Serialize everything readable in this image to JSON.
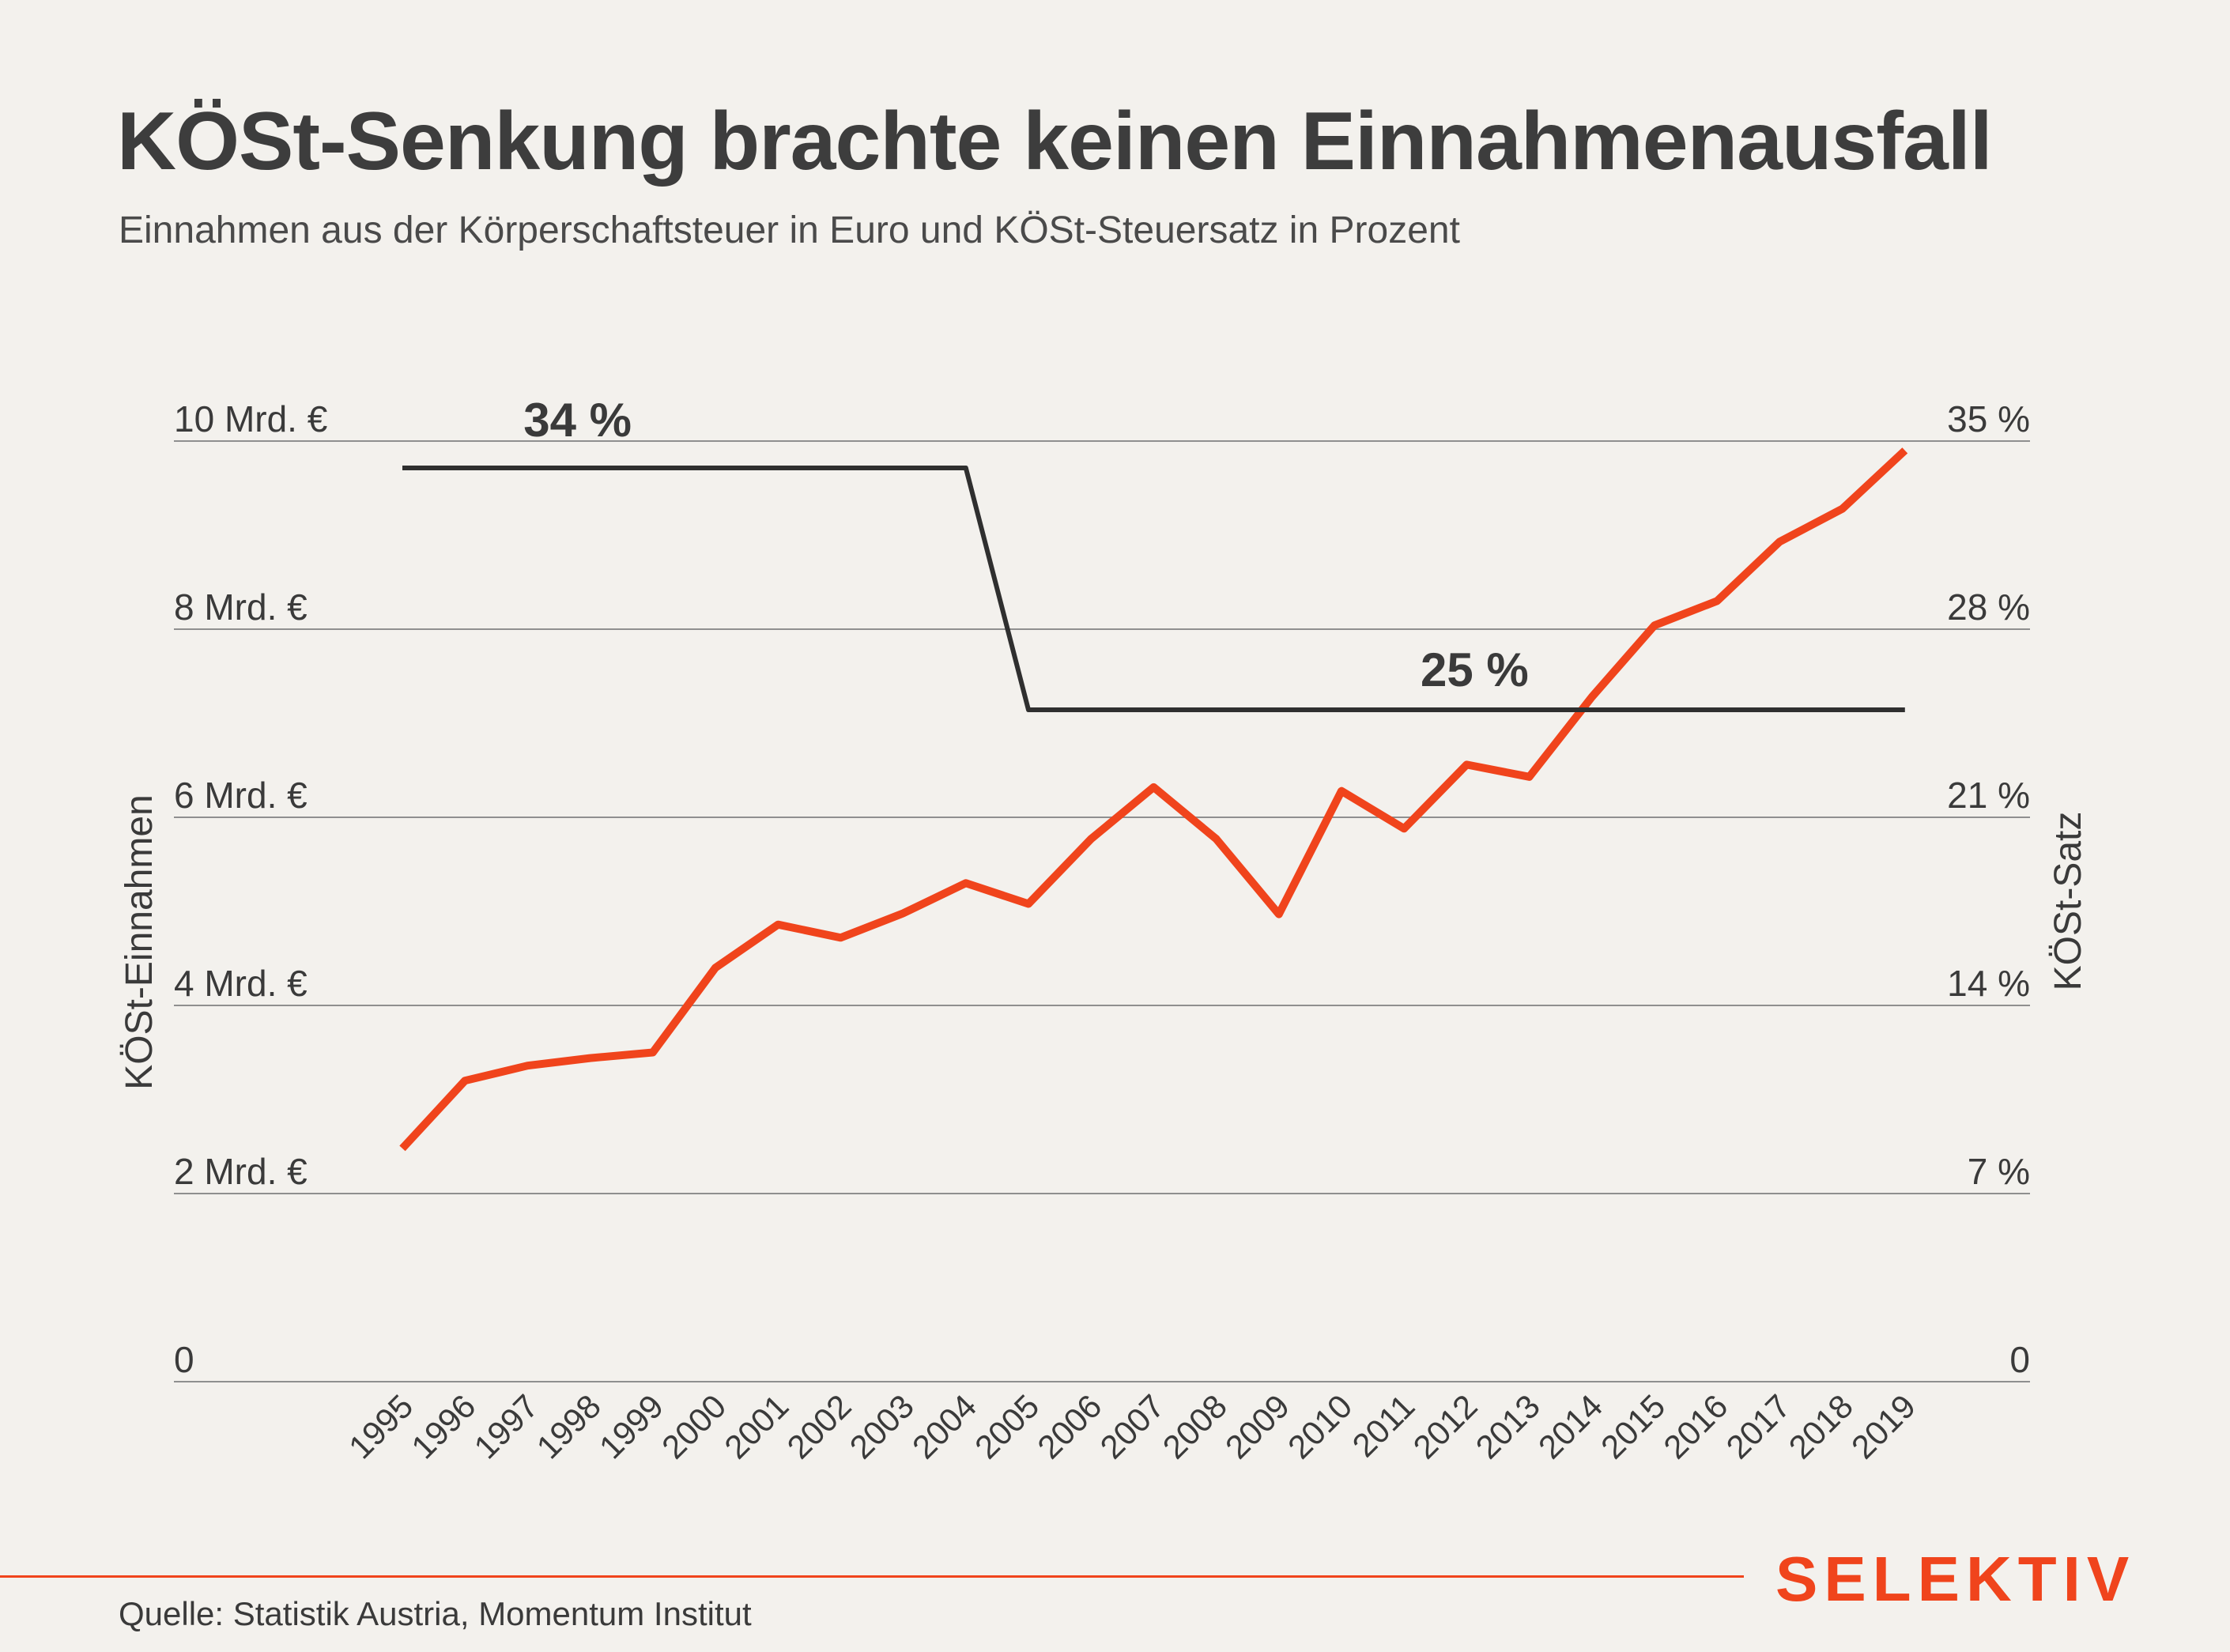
{
  "header": {
    "title": "KÖSt-Senkung brachte keinen Einnahmenausfall",
    "subtitle": "Einnahmen aus der Körperschaftsteuer in Euro und KÖSt-Steuersatz in Prozent"
  },
  "footer": {
    "source": "Quelle: Statistik Austria, Momentum Institut",
    "brand": "SELEKTIV"
  },
  "chart_data": {
    "type": "line",
    "x": [
      "1995",
      "1996",
      "1997",
      "1998",
      "1999",
      "2000",
      "2001",
      "2002",
      "2003",
      "2004",
      "2005",
      "2006",
      "2007",
      "2008",
      "2009",
      "2010",
      "2011",
      "2012",
      "2013",
      "2014",
      "2015",
      "2016",
      "2017",
      "2018",
      "2019"
    ],
    "left_axis": {
      "label": "KÖSt-Einnahmen",
      "ticks": [
        "0",
        "2 Mrd. €",
        "4 Mrd. €",
        "6 Mrd. €",
        "8 Mrd. €",
        "10 Mrd. €"
      ],
      "tick_values": [
        0,
        2,
        4,
        6,
        8,
        10
      ],
      "ylim": [
        0,
        10
      ]
    },
    "right_axis": {
      "label": "KÖSt-Satz",
      "ticks": [
        "0",
        "7 %",
        "14 %",
        "21 %",
        "28 %",
        "35 %"
      ],
      "tick_values": [
        0,
        7,
        14,
        21,
        28,
        35
      ],
      "ylim": [
        0,
        35
      ]
    },
    "series": [
      {
        "id": "revenue",
        "axis": "left",
        "color": "#f0441c",
        "values": [
          2.48,
          3.2,
          3.36,
          3.44,
          3.5,
          4.4,
          4.86,
          4.72,
          4.98,
          5.3,
          5.08,
          5.77,
          6.32,
          5.77,
          4.97,
          6.28,
          5.88,
          6.56,
          6.43,
          7.28,
          8.04,
          8.3,
          8.93,
          9.28,
          9.9
        ]
      },
      {
        "id": "tax-rate",
        "axis": "right",
        "color": "#2f2f2f",
        "values": [
          34,
          34,
          34,
          34,
          34,
          34,
          34,
          34,
          34,
          34,
          25,
          25,
          25,
          25,
          25,
          25,
          25,
          25,
          25,
          25,
          25,
          25,
          25,
          25,
          25
        ]
      }
    ],
    "annotations": [
      "34 %",
      "25 %"
    ],
    "grid": true
  },
  "colors": {
    "background": "#f3f1ed",
    "accent": "#f0441c",
    "rate_line": "#2f2f2f",
    "grid": "#8f8f8f"
  }
}
